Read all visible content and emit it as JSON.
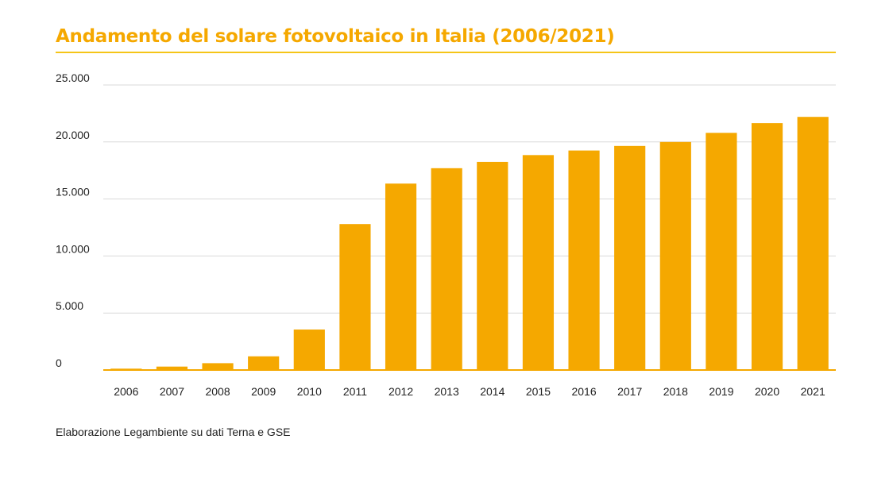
{
  "title": "Andamento del solare fotovoltaico in Italia (2006/2021)",
  "source": "Elaborazione Legambiente su dati Terna e GSE",
  "colors": {
    "bar": "#f5a800",
    "accent": "#f5a800",
    "grid": "#d9d9d9",
    "text": "#222222"
  },
  "chart_data": {
    "type": "bar",
    "title": "Andamento del solare fotovoltaico in Italia (2006/2021)",
    "xlabel": "",
    "ylabel": "",
    "grid": true,
    "ylim": [
      0,
      25000
    ],
    "yticks": [
      {
        "value": 0,
        "label": "0"
      },
      {
        "value": 5000,
        "label": "5.000"
      },
      {
        "value": 10000,
        "label": "10.000"
      },
      {
        "value": 15000,
        "label": "15.000"
      },
      {
        "value": 20000,
        "label": "20.000"
      },
      {
        "value": 25000,
        "label": "25.000"
      }
    ],
    "categories": [
      "2006",
      "2007",
      "2008",
      "2009",
      "2010",
      "2011",
      "2012",
      "2013",
      "2014",
      "2015",
      "2016",
      "2017",
      "2018",
      "2019",
      "2020",
      "2021"
    ],
    "values": [
      120,
      300,
      600,
      1200,
      3550,
      12800,
      16350,
      17700,
      18250,
      18850,
      19250,
      19650,
      20000,
      20800,
      21650,
      22200
    ]
  }
}
